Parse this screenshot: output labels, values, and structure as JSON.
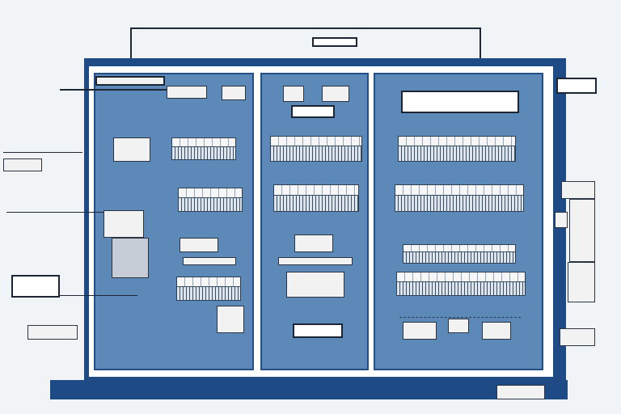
{
  "diagram": {
    "top_label": "",
    "right_label": "",
    "left_labels": [
      "",
      "",
      "",
      "",
      ""
    ],
    "panels": [
      "",
      "",
      ""
    ],
    "center_boxes": [
      "",
      "",
      ""
    ],
    "right_boxes": [
      "",
      "",
      ""
    ],
    "footer_tag": ""
  },
  "colors": {
    "frame": "#1e4b86",
    "panel": "#5c89b8",
    "background": "#f1f4f7"
  }
}
